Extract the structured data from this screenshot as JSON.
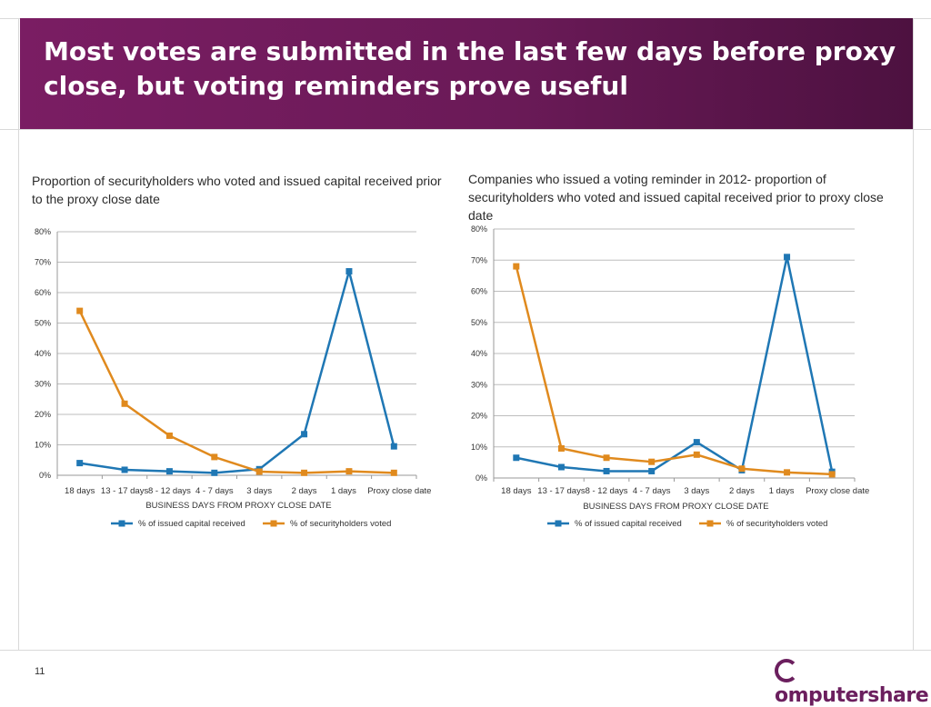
{
  "slide": {
    "title": "Most votes are submitted in the last few days before proxy close, but voting reminders prove useful",
    "page_number": "11",
    "logo_text": "omputershare",
    "colors": {
      "header": "#6a1a57",
      "series_blue": "#1f77b4",
      "series_orange": "#e08a1e"
    }
  },
  "chart_data": [
    {
      "type": "line",
      "title": "Proportion of securityholders who voted and issued capital received prior to the proxy close date",
      "xlabel": "BUSINESS DAYS FROM PROXY CLOSE DATE",
      "ylabel": "",
      "categories": [
        "18 days",
        "13 - 17 days",
        "8 - 12 days",
        "4 - 7 days",
        "3 days",
        "2 days",
        "1 days",
        "Proxy close date"
      ],
      "yticks": [
        "0%",
        "10%",
        "20%",
        "30%",
        "40%",
        "50%",
        "60%",
        "70%",
        "80%"
      ],
      "ylim": [
        0,
        80
      ],
      "grid": true,
      "legend_position": "bottom",
      "series": [
        {
          "name": "% of issued capital received",
          "color": "#1f77b4",
          "values": [
            4,
            1.8,
            1.3,
            0.8,
            2,
            13.5,
            67,
            9.5
          ]
        },
        {
          "name": "% of securityholders voted",
          "color": "#e08a1e",
          "values": [
            54,
            23.5,
            13,
            6,
            1.2,
            0.8,
            1.3,
            0.8
          ]
        }
      ]
    },
    {
      "type": "line",
      "title": "Companies who issued a voting reminder in 2012- proportion of securityholders who voted and issued capital received prior to proxy close date",
      "xlabel": "BUSINESS DAYS FROM PROXY CLOSE DATE",
      "ylabel": "",
      "categories": [
        "18 days",
        "13 - 17 days",
        "8 - 12 days",
        "4 - 7 days",
        "3 days",
        "2 days",
        "1 days",
        "Proxy close date"
      ],
      "yticks": [
        "0%",
        "10%",
        "20%",
        "30%",
        "40%",
        "50%",
        "60%",
        "70%",
        "80%"
      ],
      "ylim": [
        0,
        80
      ],
      "grid": true,
      "legend_position": "bottom",
      "series": [
        {
          "name": "% of issued capital received",
          "color": "#1f77b4",
          "values": [
            6.5,
            3.5,
            2.2,
            2.2,
            11.5,
            2.5,
            71,
            2
          ]
        },
        {
          "name": "% of securityholders voted",
          "color": "#e08a1e",
          "values": [
            68,
            9.5,
            6.5,
            5.2,
            7.5,
            3,
            1.8,
            1.2
          ]
        }
      ]
    }
  ]
}
